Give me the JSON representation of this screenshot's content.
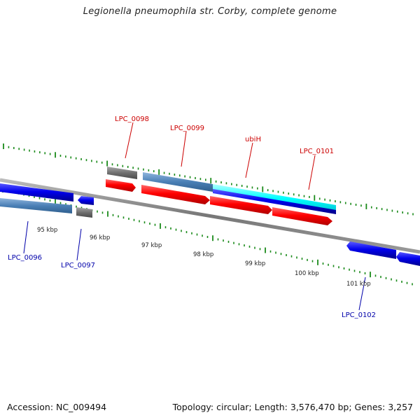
{
  "title": "Legionella pneumophila str. Corby, complete genome",
  "accession": "Accession: NC_009494",
  "summary": "Topology: circular; Length: 3,576,470 bp; Genes: 3,257",
  "colors": {
    "forward_label": "#cc0000",
    "reverse_label": "#0000aa",
    "forward_cds": "#ff0000",
    "reverse_cds": "#0000ee",
    "gene_bar": "#4a7fb5",
    "pseudo_gray": "#707070",
    "highlight_cyan": "#00ffff",
    "backbone": "#888888",
    "tick": "#1a8a1a"
  },
  "forward_labels": [
    {
      "id": "LPC_0098",
      "text": "LPC_0098"
    },
    {
      "id": "LPC_0099",
      "text": "LPC_0099"
    },
    {
      "id": "ubiH",
      "text": "ubiH"
    },
    {
      "id": "LPC_0101",
      "text": "LPC_0101"
    }
  ],
  "reverse_labels": [
    {
      "id": "LPC_0096",
      "text": "LPC_0096"
    },
    {
      "id": "LPC_0097",
      "text": "LPC_0097"
    },
    {
      "id": "LPC_0102",
      "text": "LPC_0102"
    }
  ],
  "ticks": [
    {
      "label": "95 kbp"
    },
    {
      "label": "96 kbp"
    },
    {
      "label": "97 kbp"
    },
    {
      "label": "98 kbp"
    },
    {
      "label": "99 kbp"
    },
    {
      "label": "100 kbp"
    },
    {
      "label": "101 kbp"
    }
  ]
}
